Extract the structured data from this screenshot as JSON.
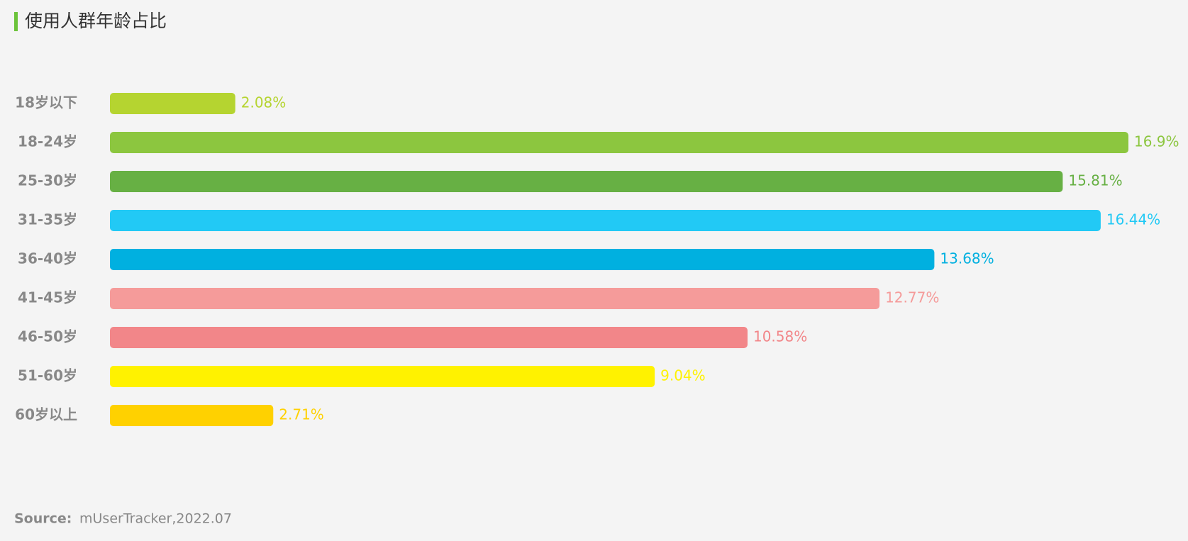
{
  "chart_data": {
    "type": "bar",
    "title": "使用人群年龄占比",
    "categories": [
      "18岁以下",
      "18-24岁",
      "25-30岁",
      "31-35岁",
      "36-40岁",
      "41-45岁",
      "46-50岁",
      "51-60岁",
      "60岁以上"
    ],
    "values": [
      2.08,
      16.9,
      15.81,
      16.44,
      13.68,
      12.77,
      10.58,
      9.04,
      2.71
    ],
    "value_labels": [
      "2.08%",
      "16.9%",
      "15.81%",
      "16.44%",
      "13.68%",
      "12.77%",
      "10.58%",
      "9.04%",
      "2.71%"
    ],
    "colors": [
      "#b5d430",
      "#8cc63f",
      "#67b044",
      "#22c9f5",
      "#00b0e0",
      "#f59b9a",
      "#f28689",
      "#fff200",
      "#ffd100"
    ],
    "source_label": "Source:",
    "source": "mUserTracker,2022.07"
  }
}
